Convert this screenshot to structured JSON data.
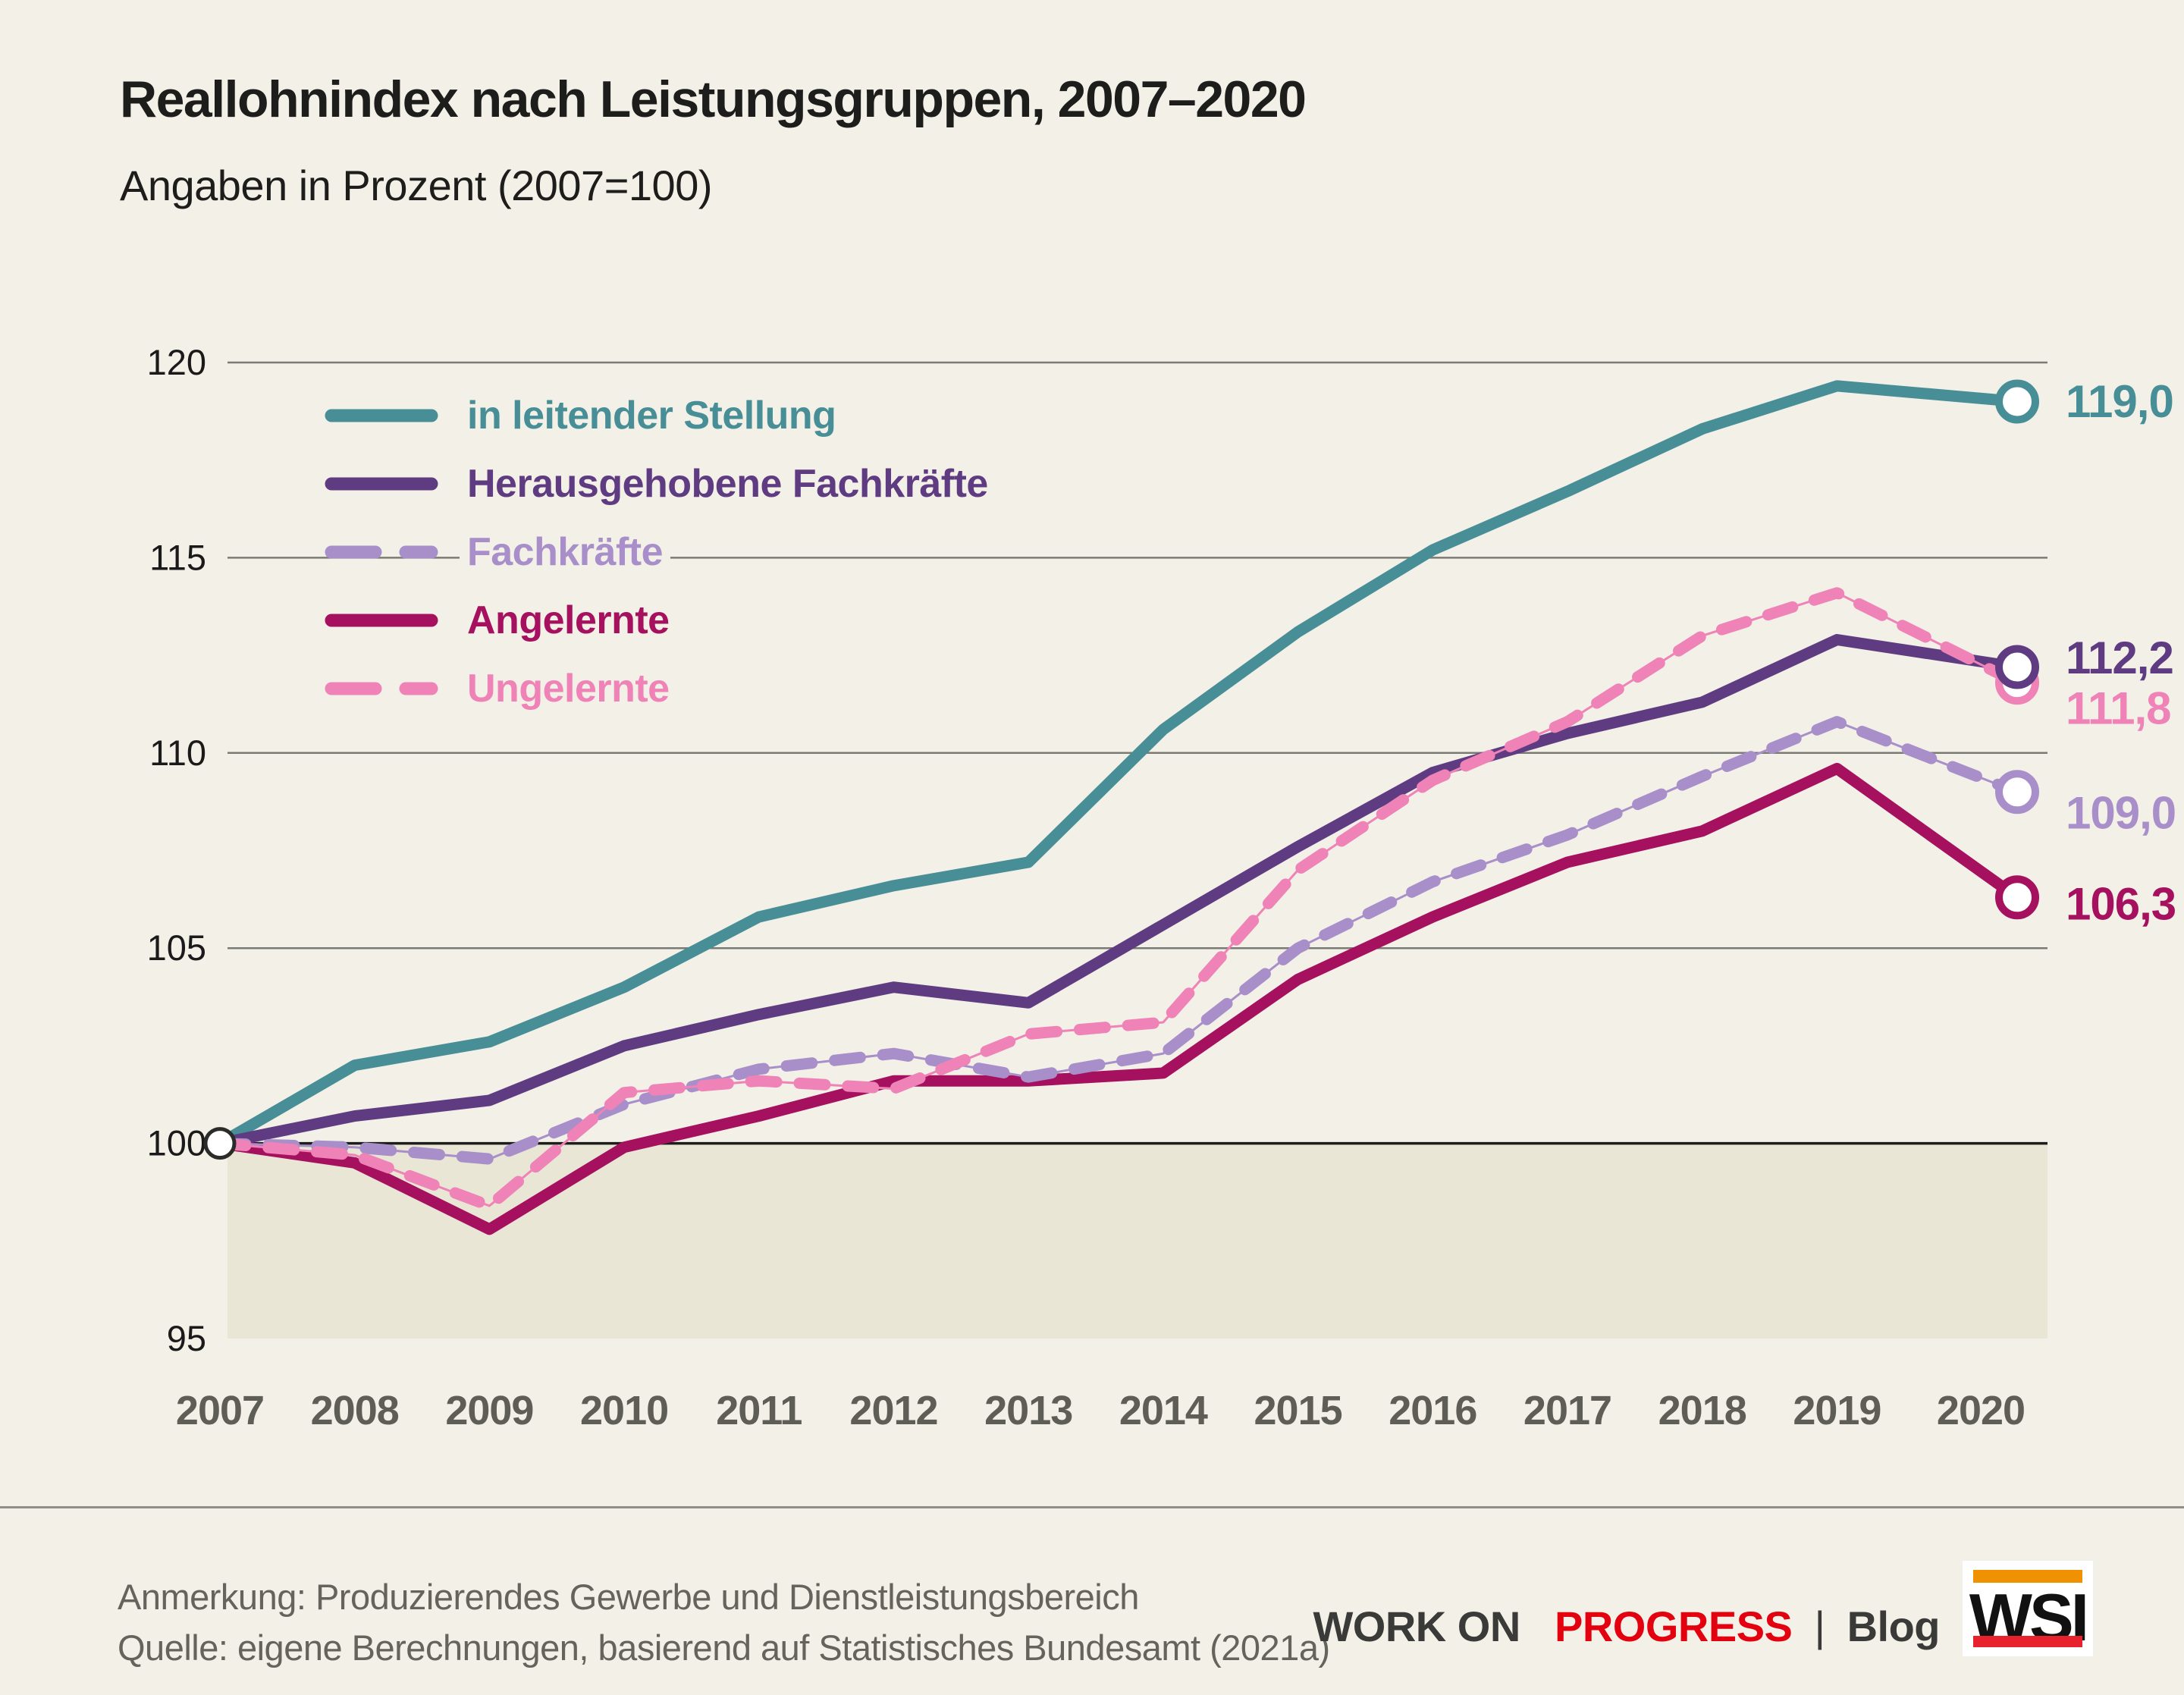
{
  "header": {
    "title": "Reallohnindex nach Leistungsgruppen, 2007–2020",
    "subtitle": "Angaben in Prozent (2007=100)"
  },
  "chart_data": {
    "type": "line",
    "x": [
      2007,
      2008,
      2009,
      2010,
      2011,
      2012,
      2013,
      2014,
      2015,
      2016,
      2017,
      2018,
      2019,
      2020
    ],
    "ylim": [
      95,
      120
    ],
    "yticks": [
      95,
      100,
      105,
      110,
      115,
      120
    ],
    "grid": true,
    "baseline_value": 100,
    "shaded_below": 100,
    "legend_position": "top-left-inside",
    "series": [
      {
        "name": "in leitender Stellung",
        "color": "#478e97",
        "dashed": false,
        "values": [
          100.0,
          102.0,
          102.6,
          104.0,
          105.8,
          106.6,
          107.2,
          110.6,
          113.1,
          115.2,
          116.7,
          118.3,
          119.4,
          119.0
        ],
        "end_label": "119,0"
      },
      {
        "name": "Herausgehobene Fachkräfte",
        "color": "#5f3c82",
        "dashed": false,
        "values": [
          100.0,
          100.7,
          101.1,
          102.5,
          103.3,
          104.0,
          103.6,
          105.6,
          107.6,
          109.5,
          110.5,
          111.3,
          112.9,
          112.2
        ],
        "end_label": "112,2"
      },
      {
        "name": "Fachkräfte",
        "color": "#a88fca",
        "dashed": true,
        "values": [
          100.0,
          99.9,
          99.6,
          101.0,
          101.9,
          102.3,
          101.7,
          102.3,
          105.0,
          106.7,
          107.9,
          109.4,
          110.8,
          109.0
        ],
        "end_label": "109,0"
      },
      {
        "name": "Angelernte",
        "color": "#a5105f",
        "dashed": false,
        "values": [
          100.0,
          99.5,
          97.8,
          99.9,
          100.7,
          101.6,
          101.6,
          101.8,
          104.2,
          105.8,
          107.2,
          108.0,
          109.6,
          106.3
        ],
        "end_label": "106,3"
      },
      {
        "name": "Ungelernte",
        "color": "#ef82b6",
        "dashed": true,
        "values": [
          100.0,
          99.7,
          98.4,
          101.3,
          101.6,
          101.4,
          102.8,
          103.1,
          107.0,
          109.3,
          110.8,
          113.0,
          114.1,
          111.8
        ],
        "end_label": "111,8"
      }
    ],
    "colors": {
      "background": "#f2f0e7",
      "shaded_band": "#e9e6d6",
      "gridline": "#7b7b75",
      "baseline": "#1d1d1b",
      "tick_label": "#1a1a1a",
      "year_label": "#5e5e57",
      "start_marker_ring": "#2b2b29"
    }
  },
  "footer": {
    "note": "Anmerkung: Produzierendes Gewerbe und Dienstleistungsbereich",
    "source": "Quelle: eigene Berechnungen, basierend auf Statistisches Bundesamt (2021a)"
  },
  "branding": {
    "work_on": "WORK ON",
    "progress": "PROGRESS",
    "pipe": "|",
    "blog": "Blog",
    "logo_text": "WSI",
    "progress_color": "#e3000f",
    "logo_orange": "#ef9100",
    "logo_red": "#e8212e"
  }
}
